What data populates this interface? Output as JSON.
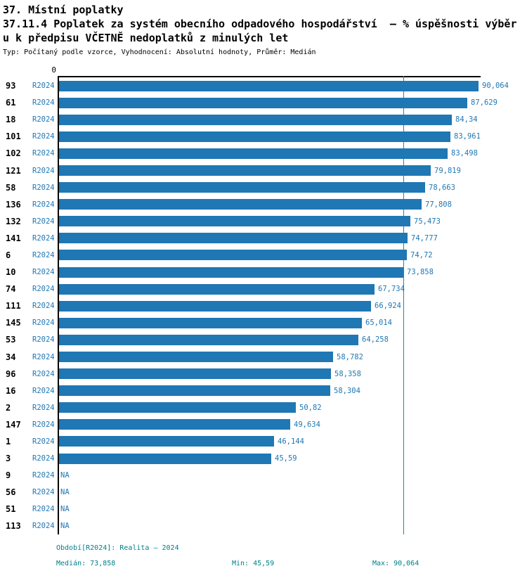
{
  "header": {
    "title_line1": "37. Místní poplatky",
    "title_line2": "37.11.4 Poplatek za systém obecního odpadového hospodářství  – % úspěšnosti výběr",
    "title_line3": "u k předpisu VČETNĚ nedoplatků z minulých let",
    "meta": "Typ: Počítaný podle vzorce, Vyhodnocení: Absolutní hodnoty, Průměr: Medián"
  },
  "chart_data": {
    "type": "bar",
    "orientation": "horizontal",
    "title": "37.11.4 Poplatek za systém obecního odpadového hospodářství – % úspěšnosti výběru k předpisu VČETNĚ nedoplatků z minulých let",
    "origin_tick_label": "0",
    "axis_max": 90.064,
    "xlim": [
      0,
      90.064
    ],
    "median_value": 73.858,
    "series_name": "R2024",
    "rows": [
      {
        "id": "93",
        "period": "R2024",
        "value": 90.064,
        "label": "90,064"
      },
      {
        "id": "61",
        "period": "R2024",
        "value": 87.629,
        "label": "87,629"
      },
      {
        "id": "18",
        "period": "R2024",
        "value": 84.34,
        "label": "84,34"
      },
      {
        "id": "101",
        "period": "R2024",
        "value": 83.961,
        "label": "83,961"
      },
      {
        "id": "102",
        "period": "R2024",
        "value": 83.498,
        "label": "83,498"
      },
      {
        "id": "121",
        "period": "R2024",
        "value": 79.819,
        "label": "79,819"
      },
      {
        "id": "58",
        "period": "R2024",
        "value": 78.663,
        "label": "78,663"
      },
      {
        "id": "136",
        "period": "R2024",
        "value": 77.808,
        "label": "77,808"
      },
      {
        "id": "132",
        "period": "R2024",
        "value": 75.473,
        "label": "75,473"
      },
      {
        "id": "141",
        "period": "R2024",
        "value": 74.777,
        "label": "74,777"
      },
      {
        "id": "6",
        "period": "R2024",
        "value": 74.72,
        "label": "74,72"
      },
      {
        "id": "10",
        "period": "R2024",
        "value": 73.858,
        "label": "73,858"
      },
      {
        "id": "74",
        "period": "R2024",
        "value": 67.734,
        "label": "67,734"
      },
      {
        "id": "111",
        "period": "R2024",
        "value": 66.924,
        "label": "66,924"
      },
      {
        "id": "145",
        "period": "R2024",
        "value": 65.014,
        "label": "65,014"
      },
      {
        "id": "53",
        "period": "R2024",
        "value": 64.258,
        "label": "64,258"
      },
      {
        "id": "34",
        "period": "R2024",
        "value": 58.782,
        "label": "58,782"
      },
      {
        "id": "96",
        "period": "R2024",
        "value": 58.358,
        "label": "58,358"
      },
      {
        "id": "16",
        "period": "R2024",
        "value": 58.304,
        "label": "58,304"
      },
      {
        "id": "2",
        "period": "R2024",
        "value": 50.82,
        "label": "50,82"
      },
      {
        "id": "147",
        "period": "R2024",
        "value": 49.634,
        "label": "49,634"
      },
      {
        "id": "1",
        "period": "R2024",
        "value": 46.144,
        "label": "46,144"
      },
      {
        "id": "3",
        "period": "R2024",
        "value": 45.59,
        "label": "45,59"
      },
      {
        "id": "9",
        "period": "R2024",
        "value": null,
        "label": "NA"
      },
      {
        "id": "56",
        "period": "R2024",
        "value": null,
        "label": "NA"
      },
      {
        "id": "51",
        "period": "R2024",
        "value": null,
        "label": "NA"
      },
      {
        "id": "113",
        "period": "R2024",
        "value": null,
        "label": "NA"
      }
    ]
  },
  "footer": {
    "period": "Období[R2024]: Realita – 2024",
    "median": "Medián: 73,858",
    "min": "Min: 45,59",
    "max": "Max: 90,064"
  },
  "colors": {
    "bar": "#1f77b4",
    "value_label": "#1f77b4",
    "period_label": "#1f77b4",
    "median_line": "#1a8a9e",
    "footer": "#00808a",
    "axis": "#000000"
  }
}
